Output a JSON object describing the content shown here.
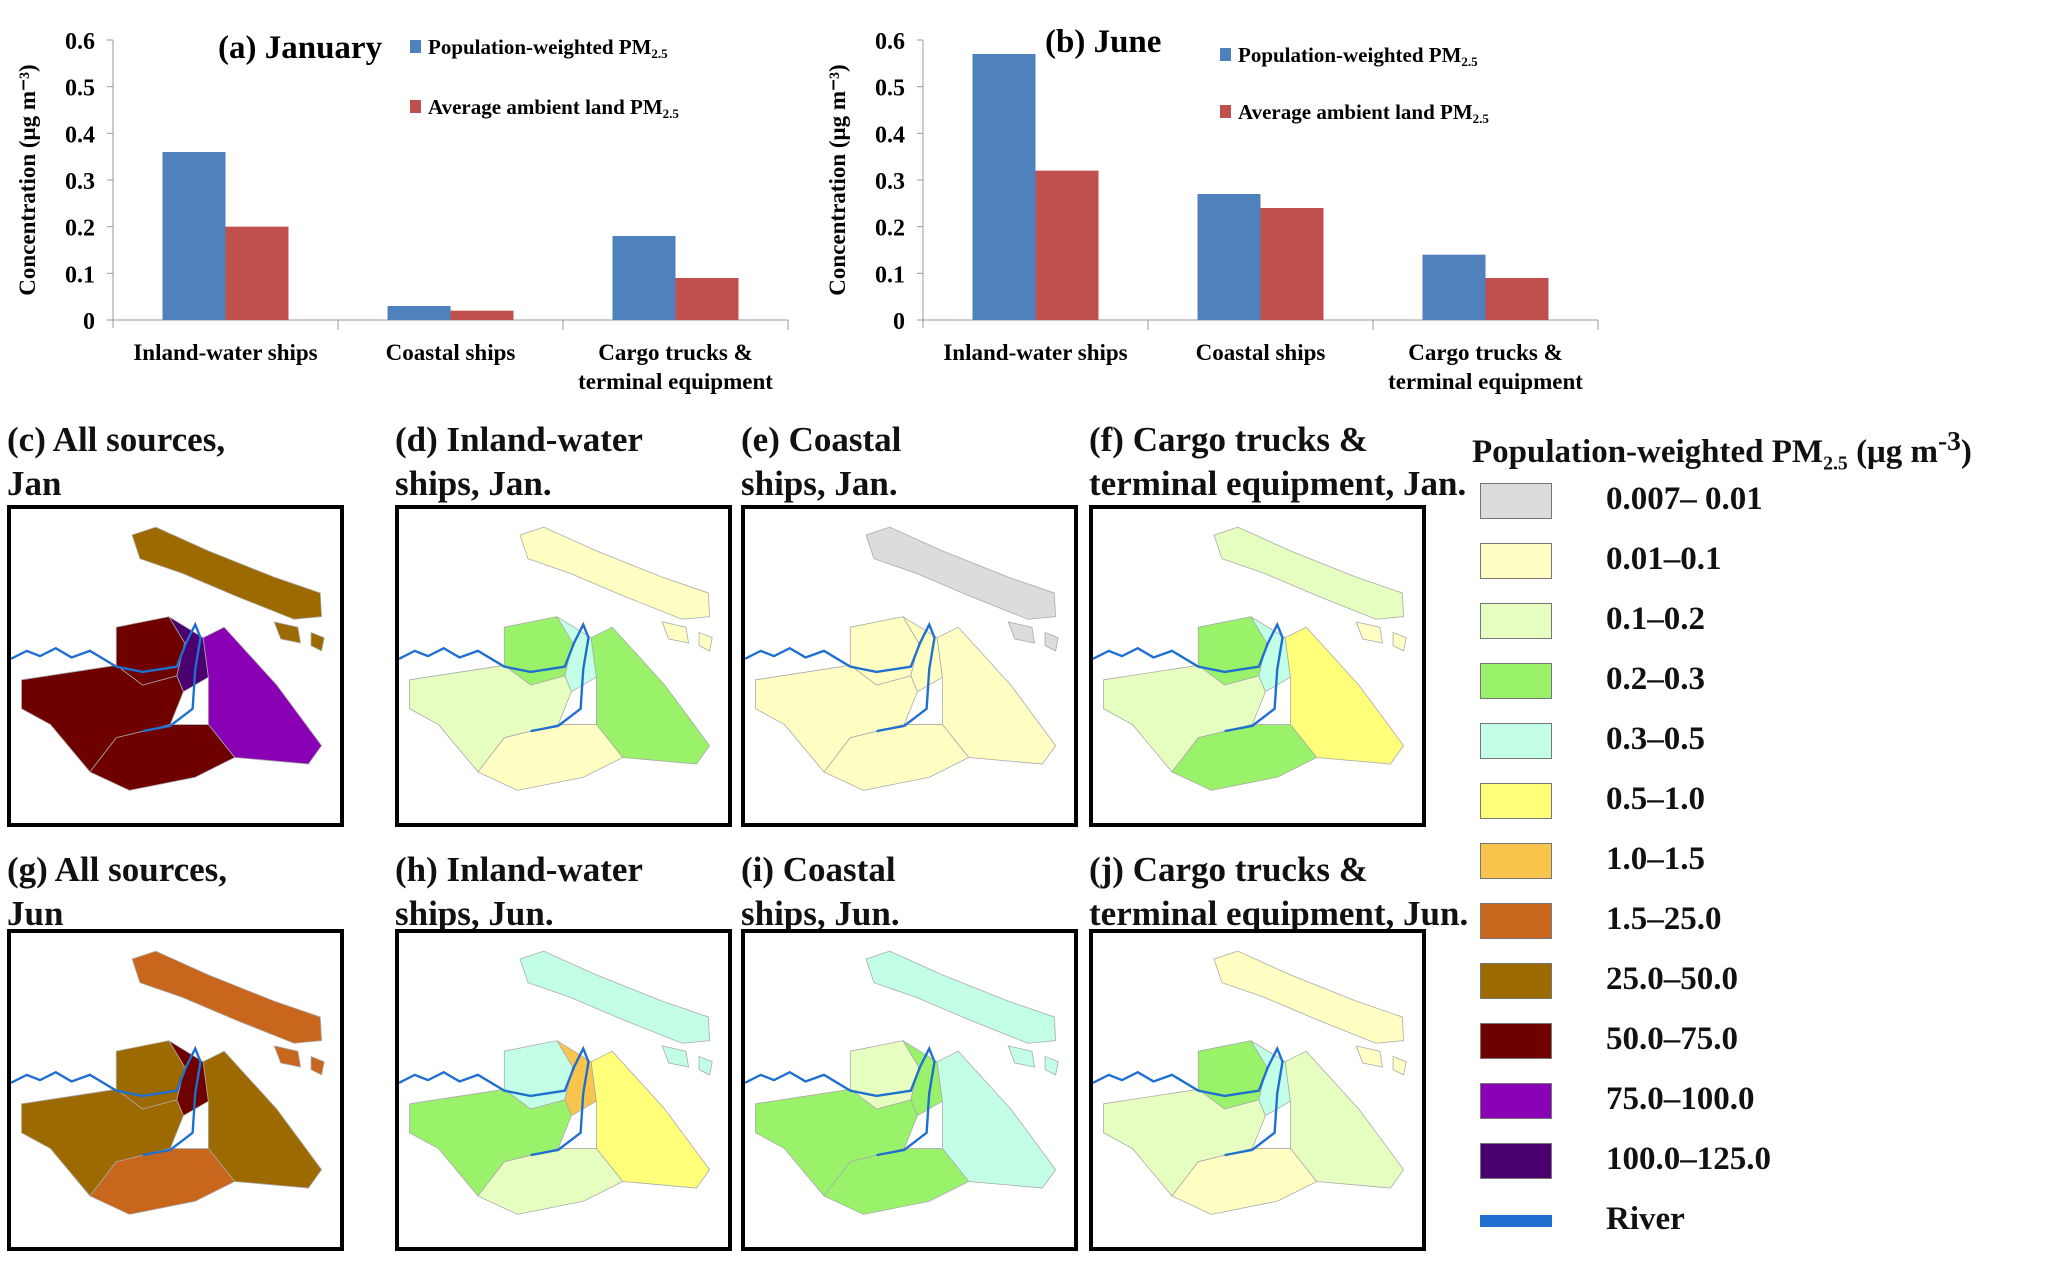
{
  "chart_data": [
    {
      "type": "bar",
      "title": "(a) January",
      "ylabel": "Concentration (μg m⁻³)",
      "ylim": [
        0,
        0.6
      ],
      "yticks": [
        "0",
        "0.1",
        "0.2",
        "0.3",
        "0.4",
        "0.5",
        "0.6"
      ],
      "categories": [
        "Inland-water ships",
        "Coastal ships",
        "Cargo trucks & terminal equipment"
      ],
      "series": [
        {
          "name": "Population-weighted PM2.5",
          "color": "#4f81bd",
          "values": [
            0.36,
            0.03,
            0.18
          ]
        },
        {
          "name": "Average ambient land PM2.5",
          "color": "#c0504d",
          "values": [
            0.2,
            0.02,
            0.09
          ]
        }
      ],
      "legend": "top-right"
    },
    {
      "type": "bar",
      "title": "(b) June",
      "ylabel": "Concentration (μg m⁻³)",
      "ylim": [
        0,
        0.6
      ],
      "yticks": [
        "0",
        "0.1",
        "0.2",
        "0.3",
        "0.4",
        "0.5",
        "0.6"
      ],
      "categories": [
        "Inland-water ships",
        "Coastal ships",
        "Cargo trucks & terminal equipment"
      ],
      "series": [
        {
          "name": "Population-weighted PM2.5",
          "color": "#4f81bd",
          "values": [
            0.57,
            0.27,
            0.14
          ]
        },
        {
          "name": "Average ambient land PM2.5",
          "color": "#c0504d",
          "values": [
            0.32,
            0.24,
            0.09
          ]
        }
      ],
      "legend": "top-right"
    }
  ],
  "legend": {
    "title": "Population-weighted PM2.5 (μg m-3)",
    "items": [
      {
        "label": "0.007– 0.01",
        "color": "#dcdcdc"
      },
      {
        "label": "0.01–0.1",
        "color": "#ffffc4"
      },
      {
        "label": "0.1–0.2",
        "color": "#e6ffc0"
      },
      {
        "label": "0.2–0.3",
        "color": "#99f26a"
      },
      {
        "label": "0.3–0.5",
        "color": "#c2ffe6"
      },
      {
        "label": "0.5–1.0",
        "color": "#ffff7a"
      },
      {
        "label": "1.0–1.5",
        "color": "#f8c44c"
      },
      {
        "label": "1.5–25.0",
        "color": "#c8661e"
      },
      {
        "label": "25.0–50.0",
        "color": "#9c6a00"
      },
      {
        "label": "50.0–75.0",
        "color": "#6e0000"
      },
      {
        "label": "75.0–100.0",
        "color": "#8a00b4"
      },
      {
        "label": "100.0–125.0",
        "color": "#4a006e"
      }
    ],
    "river": {
      "label": "River",
      "color": "#1e6fd0"
    }
  },
  "maps": [
    {
      "title": "(c) All sources,\nJan",
      "regions": [
        8,
        8,
        9,
        11,
        10,
        9,
        9
      ]
    },
    {
      "title": "(d) Inland-water\nships, Jan.",
      "regions": [
        1,
        1,
        3,
        4,
        3,
        2,
        1
      ]
    },
    {
      "title": "(e) Coastal\nships, Jan.",
      "regions": [
        0,
        0,
        1,
        1,
        1,
        1,
        1
      ]
    },
    {
      "title": "(f) Cargo trucks &\nterminal equipment, Jan.",
      "regions": [
        2,
        1,
        3,
        4,
        5,
        2,
        3
      ]
    },
    {
      "title": "(g) All sources,\nJun",
      "regions": [
        7,
        7,
        8,
        9,
        8,
        8,
        7
      ]
    },
    {
      "title": "(h) Inland-water\nships, Jun.",
      "regions": [
        4,
        4,
        4,
        6,
        5,
        3,
        2
      ]
    },
    {
      "title": "(i) Coastal\nships, Jun.",
      "regions": [
        4,
        4,
        2,
        3,
        4,
        3,
        3
      ]
    },
    {
      "title": "(j) Cargo trucks &\nterminal equipment, Jun.",
      "regions": [
        1,
        1,
        3,
        4,
        2,
        2,
        1
      ]
    }
  ]
}
